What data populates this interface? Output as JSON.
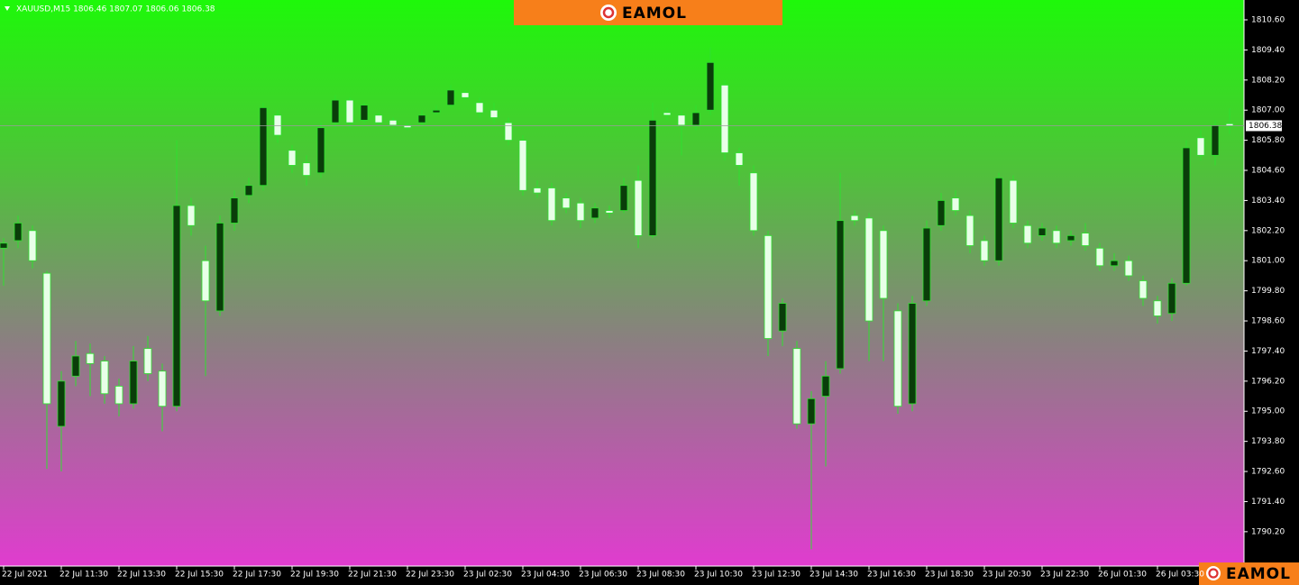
{
  "chart_data": {
    "type": "candlestick",
    "title": "XAUUSD,M15  1806.46 1807.07 1806.06 1806.38",
    "brand": "EAMOL",
    "categories": [
      "22 Jul 2021",
      null,
      null,
      null,
      "22 Jul 11:30",
      null,
      null,
      null,
      "22 Jul 13:30",
      null,
      null,
      null,
      "22 Jul 15:30",
      null,
      null,
      null,
      "22 Jul 17:30",
      null,
      null,
      null,
      "22 Jul 19:30",
      null,
      null,
      null,
      "22 Jul 21:30",
      null,
      null,
      null,
      "22 Jul 23:30",
      null,
      null,
      null,
      "23 Jul 02:30",
      null,
      null,
      null,
      "23 Jul 04:30",
      null,
      null,
      null,
      "23 Jul 06:30",
      null,
      null,
      null,
      "23 Jul 08:30",
      null,
      null,
      null,
      "23 Jul 10:30",
      null,
      null,
      null,
      "23 Jul 12:30",
      null,
      null,
      null,
      "23 Jul 14:30",
      null,
      null,
      null,
      "23 Jul 16:30",
      null,
      null,
      null,
      "23 Jul 18:30",
      null,
      null,
      null,
      "23 Jul 20:30",
      null,
      null,
      null,
      "23 Jul 22:30",
      null,
      null,
      null,
      "26 Jul 01:30",
      null,
      null,
      null,
      "26 Jul 03:30",
      null,
      null,
      null,
      null,
      null
    ],
    "open": [
      1801.5,
      1801.8,
      1802.2,
      1800.5,
      1794.4,
      1796.4,
      1797.3,
      1797.0,
      1796.0,
      1795.3,
      1797.5,
      1796.6,
      1795.2,
      1803.2,
      1801.0,
      1799.0,
      1802.5,
      1803.6,
      1804.0,
      1806.8,
      1805.4,
      1804.9,
      1804.5,
      1806.5,
      1807.4,
      1806.6,
      1806.8,
      1806.6,
      1806.4,
      1806.5,
      1806.9,
      1807.2,
      1807.7,
      1807.3,
      1807.0,
      1806.5,
      1805.8,
      1803.9,
      1803.9,
      1803.5,
      1803.3,
      1802.7,
      1803.0,
      1803.0,
      1804.2,
      1802.0,
      1806.9,
      1806.8,
      1806.4,
      1807.0,
      1808.0,
      1805.3,
      1804.5,
      1802.0,
      1798.2,
      1797.5,
      1794.5,
      1795.6,
      1796.7,
      1802.8,
      1802.7,
      1802.2,
      1799.0,
      1795.3,
      1799.4,
      1802.4,
      1803.5,
      1802.8,
      1801.8,
      1801.0,
      1804.2,
      1802.4,
      1802.0,
      1802.2,
      1801.8,
      1802.1,
      1801.5,
      1800.8,
      1801.0,
      1800.2,
      1799.4,
      1798.9,
      1800.1,
      1805.9,
      1805.2,
      1806.46
    ],
    "high": [
      1801.9,
      1802.8,
      1802.4,
      1800.6,
      1796.6,
      1797.8,
      1797.7,
      1797.2,
      1796.3,
      1797.6,
      1798.0,
      1796.9,
      1805.8,
      1803.5,
      1801.6,
      1802.8,
      1803.8,
      1804.3,
      1807.3,
      1807.0,
      1805.6,
      1805.2,
      1806.5,
      1807.6,
      1807.5,
      1807.3,
      1806.9,
      1806.7,
      1806.5,
      1807.0,
      1807.2,
      1808.0,
      1807.8,
      1807.5,
      1807.3,
      1806.7,
      1806.0,
      1804.2,
      1804.1,
      1803.7,
      1803.5,
      1803.3,
      1803.2,
      1804.3,
      1804.8,
      1807.3,
      1807.1,
      1807.0,
      1807.2,
      1809.5,
      1808.2,
      1805.5,
      1804.8,
      1802.2,
      1799.5,
      1797.8,
      1795.8,
      1797.0,
      1804.5,
      1803.0,
      1802.9,
      1802.4,
      1799.3,
      1799.6,
      1802.6,
      1803.7,
      1803.8,
      1803.0,
      1802.0,
      1804.5,
      1804.4,
      1802.6,
      1802.5,
      1802.4,
      1802.2,
      1802.5,
      1801.7,
      1801.3,
      1801.2,
      1800.4,
      1799.6,
      1800.3,
      1805.8,
      1806.2,
      1806.6,
      1807.07
    ],
    "low": [
      1800.0,
      1801.5,
      1800.7,
      1792.7,
      1792.6,
      1796.0,
      1795.6,
      1795.3,
      1794.8,
      1795.1,
      1796.2,
      1794.2,
      1795.0,
      1802.0,
      1796.4,
      1798.8,
      1802.2,
      1803.3,
      1803.8,
      1805.7,
      1804.5,
      1804.0,
      1804.3,
      1806.3,
      1806.3,
      1806.5,
      1806.4,
      1806.3,
      1806.2,
      1806.4,
      1806.8,
      1807.1,
      1807.4,
      1806.7,
      1806.5,
      1805.6,
      1803.6,
      1803.5,
      1802.4,
      1802.9,
      1802.3,
      1802.5,
      1802.7,
      1802.9,
      1801.5,
      1801.9,
      1806.6,
      1805.2,
      1806.2,
      1806.8,
      1805.0,
      1804.0,
      1802.0,
      1797.2,
      1797.6,
      1794.3,
      1789.5,
      1792.8,
      1796.5,
      1802.4,
      1797.0,
      1797.0,
      1794.9,
      1795.0,
      1799.2,
      1802.2,
      1802.8,
      1801.3,
      1800.8,
      1800.8,
      1802.3,
      1801.5,
      1801.8,
      1801.5,
      1801.6,
      1801.4,
      1800.6,
      1800.6,
      1800.2,
      1799.2,
      1798.5,
      1798.6,
      1800.0,
      1805.0,
      1804.8,
      1806.06
    ],
    "close": [
      1801.7,
      1802.5,
      1801.0,
      1795.3,
      1796.2,
      1797.2,
      1796.9,
      1795.7,
      1795.3,
      1797.0,
      1796.5,
      1795.2,
      1803.2,
      1802.4,
      1799.4,
      1802.5,
      1803.5,
      1804.0,
      1807.1,
      1806.0,
      1804.8,
      1804.4,
      1806.3,
      1807.4,
      1806.5,
      1807.2,
      1806.5,
      1806.4,
      1806.3,
      1806.8,
      1807.0,
      1807.8,
      1807.5,
      1806.9,
      1806.7,
      1805.8,
      1803.8,
      1803.7,
      1802.6,
      1803.1,
      1802.6,
      1803.1,
      1802.9,
      1804.0,
      1802.0,
      1806.6,
      1806.8,
      1806.4,
      1806.9,
      1808.9,
      1805.3,
      1804.8,
      1802.2,
      1797.9,
      1799.3,
      1794.5,
      1795.5,
      1796.4,
      1802.6,
      1802.6,
      1798.6,
      1799.5,
      1795.2,
      1799.3,
      1802.3,
      1803.4,
      1803.0,
      1801.6,
      1801.0,
      1804.3,
      1802.5,
      1801.7,
      1802.3,
      1801.7,
      1802.0,
      1801.6,
      1800.8,
      1801.0,
      1800.4,
      1799.5,
      1798.8,
      1800.1,
      1805.5,
      1805.2,
      1806.4,
      1806.38
    ],
    "up_color": "#0a3d0a",
    "down_color": "#e8ffe8",
    "wick_color": "#2ee02e",
    "last_price": 1806.38,
    "ylim": [
      1788.83,
      1811.39
    ],
    "yticks": [
      {
        "value": 1810.6,
        "label": "1810.60"
      },
      {
        "value": 1809.4,
        "label": "1809.40"
      },
      {
        "value": 1808.2,
        "label": "1808.20"
      },
      {
        "value": 1807,
        "label": "1807.00"
      },
      {
        "value": 1805.8,
        "label": "1805.80"
      },
      {
        "value": 1804.6,
        "label": "1804.60"
      },
      {
        "value": 1803.4,
        "label": "1803.40"
      },
      {
        "value": 1802.2,
        "label": "1802.20"
      },
      {
        "value": 1801,
        "label": "1801.00"
      },
      {
        "value": 1799.8,
        "label": "1799.80"
      },
      {
        "value": 1798.6,
        "label": "1798.60"
      },
      {
        "value": 1797.4,
        "label": "1797.40"
      },
      {
        "value": 1796.2,
        "label": "1796.20"
      },
      {
        "value": 1795,
        "label": "1795.00"
      },
      {
        "value": 1793.8,
        "label": "1793.80"
      },
      {
        "value": 1792.6,
        "label": "1792.60"
      },
      {
        "value": 1791.4,
        "label": "1791.40"
      },
      {
        "value": 1790.2,
        "label": "1790.20"
      }
    ]
  }
}
